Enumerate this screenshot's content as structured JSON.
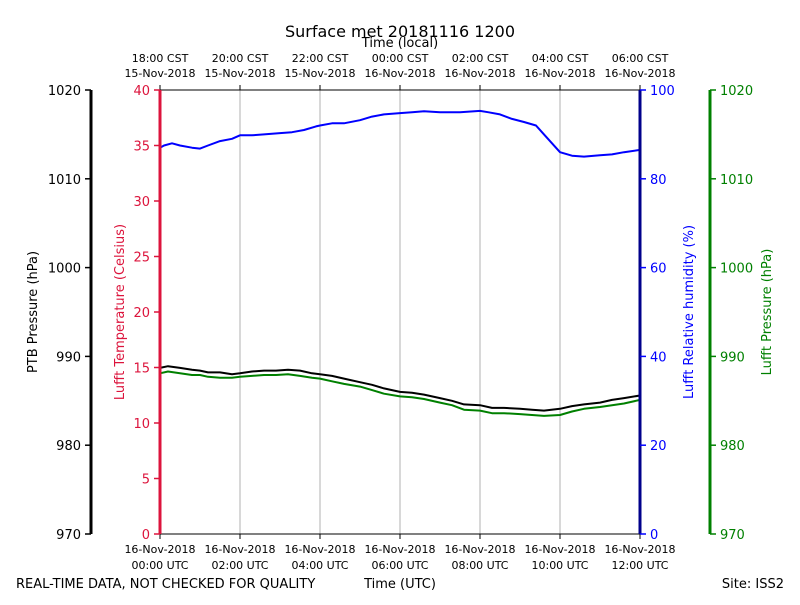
{
  "chart_data": {
    "type": "line",
    "title": "Surface met 20181116 1200",
    "top_axis_title": "Time (local)",
    "xlabel": "Time (UTC)",
    "footer_left": "REAL-TIME DATA, NOT CHECKED FOR QUALITY",
    "footer_right": "Site: ISS2",
    "x_range_hours_utc": [
      0,
      12
    ],
    "bottom_ticks": [
      {
        "x": 0,
        "line1": "16-Nov-2018",
        "line2": "00:00 UTC"
      },
      {
        "x": 2,
        "line1": "16-Nov-2018",
        "line2": "02:00 UTC"
      },
      {
        "x": 4,
        "line1": "16-Nov-2018",
        "line2": "04:00 UTC"
      },
      {
        "x": 6,
        "line1": "16-Nov-2018",
        "line2": "06:00 UTC"
      },
      {
        "x": 8,
        "line1": "16-Nov-2018",
        "line2": "08:00 UTC"
      },
      {
        "x": 10,
        "line1": "16-Nov-2018",
        "line2": "10:00 UTC"
      },
      {
        "x": 12,
        "line1": "16-Nov-2018",
        "line2": "12:00 UTC"
      }
    ],
    "top_ticks": [
      {
        "x": 0,
        "line1": "18:00 CST",
        "line2": "15-Nov-2018"
      },
      {
        "x": 2,
        "line1": "20:00 CST",
        "line2": "15-Nov-2018"
      },
      {
        "x": 4,
        "line1": "22:00 CST",
        "line2": "15-Nov-2018"
      },
      {
        "x": 6,
        "line1": "00:00 CST",
        "line2": "16-Nov-2018"
      },
      {
        "x": 8,
        "line1": "02:00 CST",
        "line2": "16-Nov-2018"
      },
      {
        "x": 10,
        "line1": "04:00 CST",
        "line2": "16-Nov-2018"
      },
      {
        "x": 12,
        "line1": "06:00 CST",
        "line2": "16-Nov-2018"
      }
    ],
    "axes": {
      "ptb_pressure": {
        "label": "PTB Pressure (hPa)",
        "range": [
          970,
          1020
        ],
        "ticks": [
          970,
          980,
          990,
          1000,
          1010,
          1020
        ],
        "color": "#000000"
      },
      "lufft_temperature": {
        "label": "Lufft Temperature (Celsius)",
        "range": [
          0,
          40
        ],
        "ticks": [
          0,
          5,
          10,
          15,
          20,
          25,
          30,
          35,
          40
        ],
        "color": "#dc143c"
      },
      "lufft_humidity": {
        "label": "Lufft Relative humidity (%)",
        "range": [
          0,
          100
        ],
        "ticks": [
          0,
          20,
          40,
          60,
          80,
          100
        ],
        "color": "#0000ff"
      },
      "lufft_pressure": {
        "label": "Lufft Pressure (hPa)",
        "range": [
          970,
          1020
        ],
        "ticks": [
          970,
          980,
          990,
          1000,
          1010,
          1020
        ],
        "color": "#008000"
      }
    },
    "series": [
      {
        "name": "Lufft Relative humidity",
        "axis": "lufft_humidity",
        "color": "#0000ff",
        "x": [
          0,
          0.1,
          0.3,
          0.5,
          0.8,
          1.0,
          1.2,
          1.5,
          1.8,
          2.0,
          2.3,
          2.6,
          3.0,
          3.3,
          3.6,
          3.9,
          4.0,
          4.3,
          4.6,
          5.0,
          5.3,
          5.6,
          6.0,
          6.3,
          6.6,
          7.0,
          7.5,
          8.0,
          8.2,
          8.5,
          8.8,
          9.1,
          9.4,
          9.6,
          9.8,
          10.0,
          10.3,
          10.6,
          11.0,
          11.3,
          11.6,
          12.0
        ],
        "values": [
          87,
          87.5,
          88,
          87.5,
          87,
          86.8,
          87.5,
          88.5,
          89,
          89.8,
          89.8,
          90,
          90.3,
          90.5,
          91,
          91.8,
          92,
          92.5,
          92.5,
          93.2,
          94,
          94.5,
          94.8,
          95,
          95.2,
          95,
          95,
          95.3,
          95,
          94.5,
          93.5,
          92.8,
          92,
          90,
          88,
          86,
          85.2,
          85,
          85.3,
          85.5,
          86,
          86.5
        ]
      },
      {
        "name": "PTB Pressure",
        "axis": "ptb_pressure",
        "color": "#000000",
        "x": [
          0,
          0.2,
          0.5,
          0.8,
          1.0,
          1.2,
          1.5,
          1.8,
          2.0,
          2.3,
          2.6,
          2.9,
          3.2,
          3.5,
          3.8,
          4.0,
          4.3,
          4.6,
          5.0,
          5.3,
          5.6,
          6.0,
          6.3,
          6.6,
          7.0,
          7.3,
          7.6,
          8.0,
          8.3,
          8.6,
          9.0,
          9.3,
          9.6,
          10.0,
          10.3,
          10.6,
          11.0,
          11.3,
          11.6,
          12.0
        ],
        "values": [
          988.7,
          988.9,
          988.7,
          988.5,
          988.4,
          988.2,
          988.2,
          988.0,
          988.1,
          988.3,
          988.4,
          988.4,
          988.5,
          988.4,
          988.1,
          988.0,
          987.8,
          987.5,
          987.1,
          986.8,
          986.4,
          986.0,
          985.9,
          985.7,
          985.3,
          985.0,
          984.6,
          984.5,
          984.2,
          984.2,
          984.1,
          984.0,
          983.9,
          984.1,
          984.4,
          984.6,
          984.8,
          985.1,
          985.3,
          985.6
        ]
      },
      {
        "name": "Lufft Pressure",
        "axis": "lufft_pressure",
        "color": "#008000",
        "x": [
          0,
          0.2,
          0.5,
          0.8,
          1.0,
          1.2,
          1.5,
          1.8,
          2.0,
          2.3,
          2.6,
          2.9,
          3.2,
          3.5,
          3.8,
          4.0,
          4.3,
          4.6,
          5.0,
          5.3,
          5.6,
          6.0,
          6.3,
          6.6,
          7.0,
          7.3,
          7.6,
          8.0,
          8.3,
          8.6,
          9.0,
          9.3,
          9.6,
          10.0,
          10.3,
          10.6,
          11.0,
          11.3,
          11.6,
          12.0
        ],
        "values": [
          988.1,
          988.3,
          988.1,
          987.9,
          987.9,
          987.7,
          987.6,
          987.6,
          987.7,
          987.8,
          987.9,
          987.9,
          988.0,
          987.8,
          987.6,
          987.5,
          987.2,
          986.9,
          986.6,
          986.2,
          985.8,
          985.5,
          985.4,
          985.2,
          984.8,
          984.5,
          984.0,
          983.9,
          983.6,
          983.6,
          983.5,
          983.4,
          983.3,
          983.4,
          983.8,
          984.1,
          984.3,
          984.5,
          984.7,
          985.1
        ]
      }
    ]
  }
}
